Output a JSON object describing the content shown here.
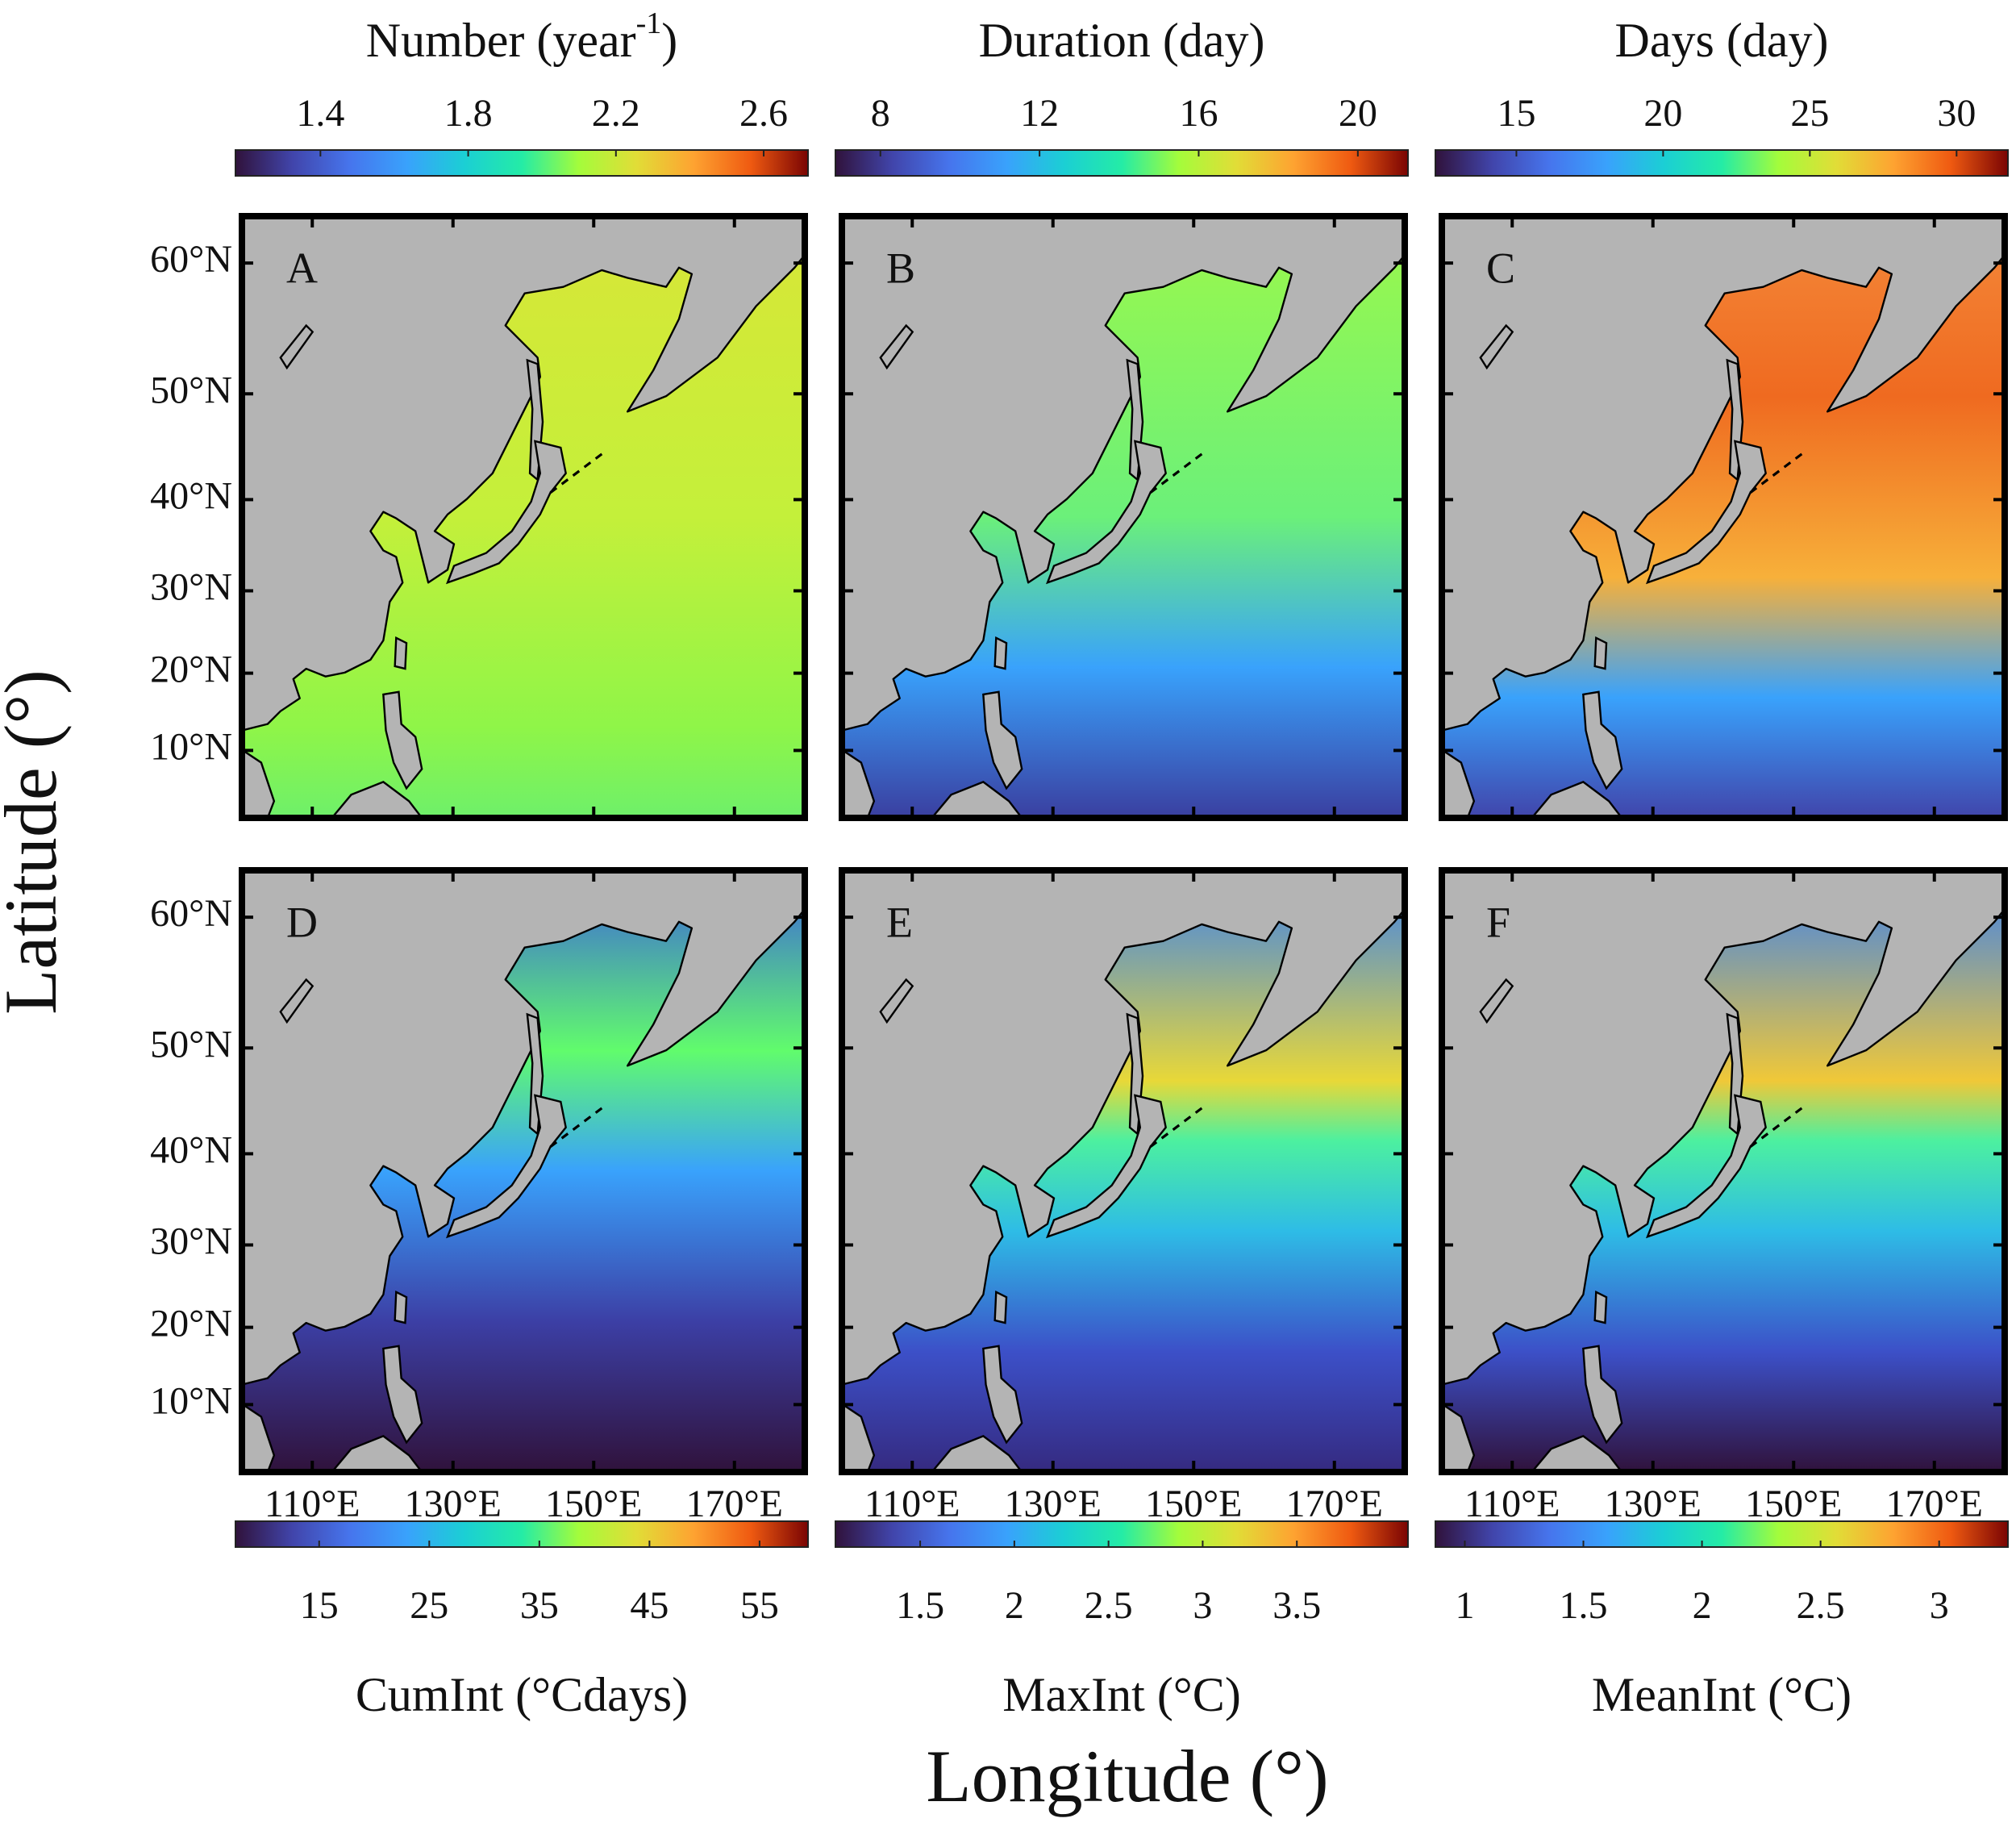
{
  "figure": {
    "y_axis_label": "Latitude (°)",
    "x_axis_label": "Longitude (°)",
    "latitude_range": [
      1,
      63
    ],
    "longitude_range": [
      100,
      180
    ],
    "latitude_ticks": [
      {
        "value": 10,
        "label": "10°N"
      },
      {
        "value": 20,
        "label": "20°N"
      },
      {
        "value": 30,
        "label": "30°N"
      },
      {
        "value": 40,
        "label": "40°N"
      },
      {
        "value": 50,
        "label": "50°N"
      },
      {
        "value": 60,
        "label": "60°N"
      }
    ],
    "longitude_ticks": [
      {
        "value": 110,
        "label": "110°E"
      },
      {
        "value": 130,
        "label": "130°E"
      },
      {
        "value": 150,
        "label": "150°E"
      },
      {
        "value": 170,
        "label": "170°E"
      }
    ],
    "colormap": [
      "#30123b",
      "#4145ab",
      "#4675ed",
      "#39a2fc",
      "#1bcfd4",
      "#24eca6",
      "#a4fc3b",
      "#e1dd37",
      "#fea331",
      "#ef5a11",
      "#7a0403"
    ],
    "colorbars": [
      {
        "title": "Number (year",
        "title_superscript": "-1",
        "title_suffix": ")",
        "range": [
          1.17,
          2.72
        ],
        "ticks": [
          1.4,
          1.8,
          2.2,
          2.6
        ]
      },
      {
        "title": "Duration (day)",
        "range": [
          6.87,
          21.26
        ],
        "ticks": [
          8,
          12,
          16,
          20
        ]
      },
      {
        "title": "Days (day)",
        "range": [
          12.24,
          31.75
        ],
        "ticks": [
          15,
          20,
          25,
          30
        ]
      },
      {
        "title": "CumInt (°Cdays)",
        "range": [
          7.4,
          59.4
        ],
        "ticks": [
          15,
          25,
          35,
          45,
          55
        ]
      },
      {
        "title": "MaxInt (°C)",
        "range": [
          1.05,
          4.09
        ],
        "ticks": [
          1.5,
          2,
          2.5,
          3,
          3.5
        ]
      },
      {
        "title": "MeanInt (°C)",
        "range": [
          0.876,
          3.29
        ],
        "ticks": [
          1,
          1.5,
          2,
          2.5,
          3
        ]
      }
    ],
    "panels": [
      {
        "label": "A"
      },
      {
        "label": "B"
      },
      {
        "label": "C"
      },
      {
        "label": "D"
      },
      {
        "label": "E"
      },
      {
        "label": "F"
      }
    ]
  }
}
